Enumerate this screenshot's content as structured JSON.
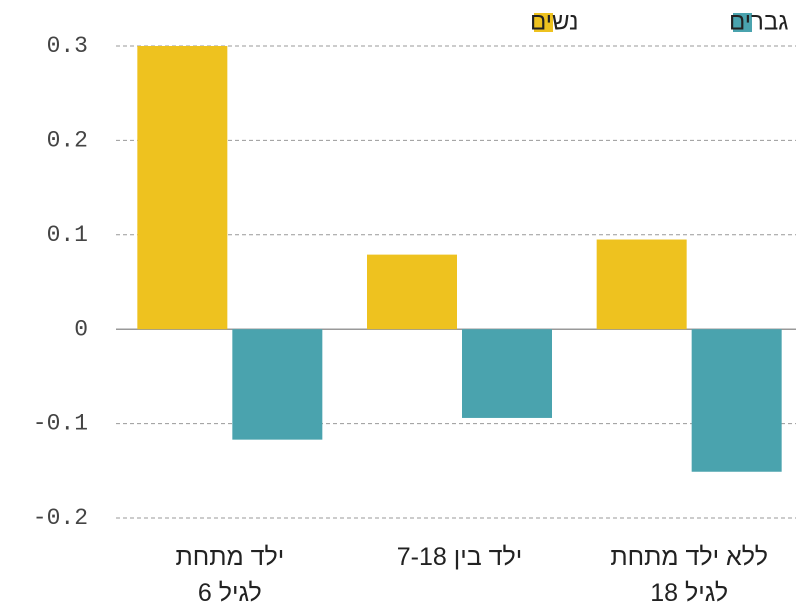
{
  "chart_data": {
    "type": "bar",
    "categories": [
      "ילד מתחת\nלגיל 6",
      "ילד בין 7-18",
      "ללא ילד מתחת\nלגיל 18"
    ],
    "series": [
      {
        "name": "נשים",
        "color": "#eec21f",
        "values": [
          0.3,
          0.079,
          0.095
        ]
      },
      {
        "name": "גברים",
        "color": "#4aa3ae",
        "values": [
          -0.117,
          -0.094,
          -0.151
        ]
      }
    ],
    "ylim": [
      -0.2,
      0.3
    ],
    "yticks": [
      0.3,
      0.2,
      0.1,
      0,
      -0.1,
      -0.2
    ],
    "grid": true,
    "legend": "top"
  }
}
